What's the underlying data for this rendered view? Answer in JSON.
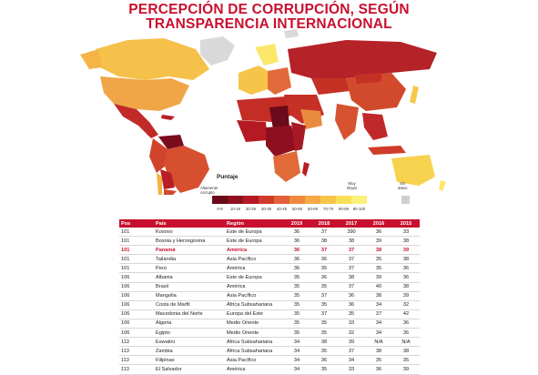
{
  "title_line1": "PERCEPCIÓN DE CORRUPCIÓN, SEGÚN",
  "title_line2": "TRANSPARENCIA INTERNACIONAL",
  "legend": {
    "title": "Puntaje",
    "low_label_1": "Altamente",
    "low_label_2": "corrupto",
    "high_label_1": "Muy",
    "high_label_2": "limpio",
    "nodata_label_1": "Sin",
    "nodata_label_2": "datos",
    "ranges": [
      "0-9",
      "10-19",
      "20-29",
      "30-39",
      "40-49",
      "50-59",
      "60-69",
      "70-79",
      "80-89",
      "90-100"
    ],
    "colors": [
      "#6b0a1a",
      "#8e1020",
      "#b51a24",
      "#d23a2a",
      "#e2603a",
      "#ee8a3e",
      "#f4a943",
      "#f6c64a",
      "#f9df55",
      "#fcef7a"
    ],
    "nodata_color": "#cfcfcf"
  },
  "table": {
    "headers": [
      "Pos",
      "País",
      "Región",
      "2019",
      "2018",
      "2017",
      "2016",
      "2015"
    ],
    "rows": [
      [
        "101",
        "Kosovo",
        "Este de Europa",
        "36",
        "37",
        "390",
        "36",
        "33"
      ],
      [
        "101",
        "Bosnia y Herzegovina",
        "Este de Europa",
        "36",
        "38",
        "38",
        "39",
        "38"
      ],
      [
        "101",
        "Panamá",
        "América",
        "36",
        "37",
        "37",
        "38",
        "39"
      ],
      [
        "101",
        "Tailandia",
        "Asia Pacífico",
        "36",
        "36",
        "37",
        "35",
        "38"
      ],
      [
        "101",
        "Perú",
        "América",
        "36",
        "35",
        "37",
        "35",
        "36"
      ],
      [
        "106",
        "Albania",
        "Este de Europa",
        "35",
        "36",
        "38",
        "39",
        "36"
      ],
      [
        "106",
        "Brasil",
        "América",
        "35",
        "35",
        "37",
        "40",
        "38"
      ],
      [
        "106",
        "Mangolia",
        "Asia Pacífico",
        "35",
        "37",
        "36",
        "38",
        "39"
      ],
      [
        "106",
        "Costa de Marfil",
        "África Subsahariana",
        "35",
        "35",
        "36",
        "34",
        "32"
      ],
      [
        "106",
        "Macedonia del Norte",
        "Europa del Este",
        "35",
        "37",
        "35",
        "37",
        "42"
      ],
      [
        "106",
        "Algeria",
        "Medio Oriente",
        "35",
        "35",
        "33",
        "34",
        "36"
      ],
      [
        "106",
        "Egipto",
        "Medio Oriente",
        "35",
        "35",
        "32",
        "34",
        "36"
      ],
      [
        "113",
        "Eswatini",
        "África Subsahariana",
        "34",
        "38",
        "39",
        "N/A",
        "N/A"
      ],
      [
        "113",
        "Zambia",
        "África Subsahariana",
        "34",
        "35",
        "37",
        "38",
        "38"
      ],
      [
        "113",
        "Filipinas",
        "Asia Pacífico",
        "34",
        "36",
        "34",
        "35",
        "35"
      ],
      [
        "113",
        "El Salvador",
        "América",
        "34",
        "35",
        "33",
        "36",
        "39"
      ]
    ],
    "highlight_index": 2
  }
}
